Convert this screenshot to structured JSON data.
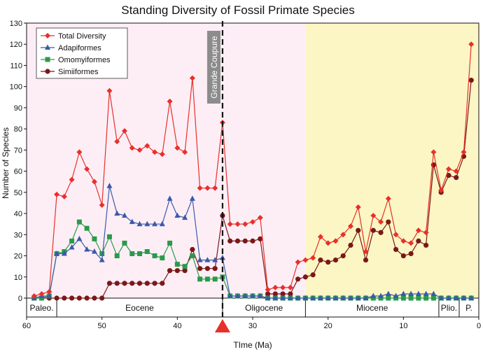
{
  "chart_data": {
    "type": "line",
    "title": "Standing Diversity of Fossil Primate Species",
    "xlabel": "TIme (Ma)",
    "ylabel": "Number of Species",
    "xlim": [
      60,
      0
    ],
    "ylim": [
      0,
      130
    ],
    "x_ticks": [
      60,
      50,
      40,
      30,
      20,
      10,
      0
    ],
    "y_ticks": [
      0,
      10,
      20,
      30,
      40,
      50,
      60,
      70,
      80,
      90,
      100,
      110,
      120,
      130
    ],
    "grid": false,
    "legend_position": "top-left",
    "background_regions": [
      {
        "from": 60,
        "to": 23,
        "color": "#fdeef6"
      },
      {
        "from": 23,
        "to": 0,
        "color": "#fbf6c4"
      }
    ],
    "epochs": [
      {
        "label": "Paleo.",
        "from": 60,
        "to": 56
      },
      {
        "label": "Eocene",
        "from": 56,
        "to": 34
      },
      {
        "label": "Oligocene",
        "from": 34,
        "to": 23
      },
      {
        "label": "Miocene",
        "from": 23,
        "to": 5.3
      },
      {
        "label": "Plio.",
        "from": 5.3,
        "to": 2.6
      },
      {
        "label": "P.",
        "from": 2.6,
        "to": 0
      }
    ],
    "annotation": {
      "text": "Grande Coupure",
      "x": 34
    },
    "series": [
      {
        "name": "Total Diversity",
        "color": "#e8302a",
        "marker": "diamond",
        "points": [
          [
            59,
            1
          ],
          [
            58,
            2
          ],
          [
            57,
            3
          ],
          [
            56,
            49
          ],
          [
            55,
            48
          ],
          [
            54,
            56
          ],
          [
            53,
            69
          ],
          [
            52,
            61
          ],
          [
            51,
            55
          ],
          [
            50,
            44
          ],
          [
            49,
            98
          ],
          [
            48,
            74
          ],
          [
            47,
            79
          ],
          [
            46,
            71
          ],
          [
            45,
            70
          ],
          [
            44,
            72
          ],
          [
            43,
            69
          ],
          [
            42,
            68
          ],
          [
            41,
            93
          ],
          [
            40,
            71
          ],
          [
            39,
            69
          ],
          [
            38,
            104
          ],
          [
            37,
            52
          ],
          [
            36,
            52
          ],
          [
            35,
            52
          ],
          [
            34,
            83
          ],
          [
            33,
            35
          ],
          [
            32,
            35
          ],
          [
            31,
            35
          ],
          [
            30,
            36
          ],
          [
            29,
            38
          ],
          [
            28,
            4
          ],
          [
            27,
            5
          ],
          [
            26,
            5
          ],
          [
            25,
            5
          ],
          [
            24,
            17
          ],
          [
            23,
            18
          ],
          [
            22,
            19
          ],
          [
            21,
            29
          ],
          [
            20,
            26
          ],
          [
            19,
            27
          ],
          [
            18,
            30
          ],
          [
            17,
            34
          ],
          [
            16,
            43
          ],
          [
            15,
            22
          ],
          [
            14,
            39
          ],
          [
            13,
            36
          ],
          [
            12,
            47
          ],
          [
            11,
            30
          ],
          [
            10,
            27
          ],
          [
            9,
            26
          ],
          [
            8,
            32
          ],
          [
            7,
            31
          ],
          [
            6,
            69
          ],
          [
            5,
            51
          ],
          [
            4,
            61
          ],
          [
            3,
            60
          ],
          [
            2,
            69
          ],
          [
            1,
            120
          ]
        ]
      },
      {
        "name": "Adapiformes",
        "color": "#3a5aa8",
        "marker": "triangle",
        "points": [
          [
            59,
            0
          ],
          [
            58,
            1
          ],
          [
            57,
            1
          ],
          [
            56,
            21
          ],
          [
            55,
            21
          ],
          [
            54,
            24
          ],
          [
            53,
            28
          ],
          [
            52,
            23
          ],
          [
            51,
            22
          ],
          [
            50,
            18
          ],
          [
            49,
            53
          ],
          [
            48,
            40
          ],
          [
            47,
            39
          ],
          [
            46,
            36
          ],
          [
            45,
            35
          ],
          [
            44,
            35
          ],
          [
            43,
            35
          ],
          [
            42,
            35
          ],
          [
            41,
            47
          ],
          [
            40,
            39
          ],
          [
            39,
            38
          ],
          [
            38,
            47
          ],
          [
            37,
            18
          ],
          [
            36,
            18
          ],
          [
            35,
            18
          ],
          [
            34,
            19
          ],
          [
            33,
            1
          ],
          [
            32,
            1
          ],
          [
            31,
            1
          ],
          [
            30,
            1
          ],
          [
            29,
            1
          ],
          [
            28,
            0
          ],
          [
            27,
            0
          ],
          [
            26,
            0
          ],
          [
            25,
            0
          ],
          [
            24,
            0
          ],
          [
            23,
            0
          ],
          [
            22,
            0
          ],
          [
            21,
            0
          ],
          [
            20,
            0
          ],
          [
            19,
            0
          ],
          [
            18,
            0
          ],
          [
            17,
            0
          ],
          [
            16,
            0
          ],
          [
            15,
            0
          ],
          [
            14,
            1
          ],
          [
            13,
            1
          ],
          [
            12,
            2
          ],
          [
            11,
            1
          ],
          [
            10,
            2
          ],
          [
            9,
            2
          ],
          [
            8,
            2
          ],
          [
            7,
            2
          ],
          [
            6,
            2
          ],
          [
            5,
            0
          ],
          [
            4,
            0
          ],
          [
            3,
            0
          ],
          [
            2,
            0
          ],
          [
            1,
            0
          ]
        ]
      },
      {
        "name": "Omomyiformes",
        "color": "#2a9a4a",
        "marker": "x",
        "points": [
          [
            59,
            0
          ],
          [
            58,
            0
          ],
          [
            57,
            1
          ],
          [
            56,
            21
          ],
          [
            55,
            22
          ],
          [
            54,
            27
          ],
          [
            53,
            36
          ],
          [
            52,
            33
          ],
          [
            51,
            28
          ],
          [
            50,
            21
          ],
          [
            49,
            29
          ],
          [
            48,
            20
          ],
          [
            47,
            26
          ],
          [
            46,
            21
          ],
          [
            45,
            21
          ],
          [
            44,
            22
          ],
          [
            43,
            20
          ],
          [
            42,
            19
          ],
          [
            41,
            26
          ],
          [
            40,
            16
          ],
          [
            39,
            15
          ],
          [
            38,
            20
          ],
          [
            37,
            9
          ],
          [
            36,
            9
          ],
          [
            35,
            9
          ],
          [
            34,
            10
          ],
          [
            33,
            1
          ],
          [
            32,
            1
          ],
          [
            31,
            1
          ],
          [
            30,
            1
          ],
          [
            29,
            1
          ],
          [
            28,
            0
          ],
          [
            27,
            0
          ],
          [
            26,
            0
          ],
          [
            25,
            0
          ],
          [
            24,
            0
          ],
          [
            23,
            0
          ],
          [
            22,
            0
          ],
          [
            21,
            0
          ],
          [
            20,
            0
          ],
          [
            19,
            0
          ],
          [
            18,
            0
          ],
          [
            17,
            0
          ],
          [
            16,
            0
          ],
          [
            15,
            0
          ],
          [
            14,
            0
          ],
          [
            13,
            0
          ],
          [
            12,
            0
          ],
          [
            11,
            0
          ],
          [
            10,
            0
          ],
          [
            9,
            0
          ],
          [
            8,
            0
          ],
          [
            7,
            0
          ],
          [
            6,
            0
          ],
          [
            5,
            0
          ],
          [
            4,
            0
          ],
          [
            3,
            0
          ],
          [
            2,
            0
          ],
          [
            1,
            0
          ]
        ]
      },
      {
        "name": "Simiiformes",
        "color": "#7a1818",
        "marker": "circle",
        "points": [
          [
            59,
            0
          ],
          [
            58,
            0
          ],
          [
            57,
            0
          ],
          [
            56,
            0
          ],
          [
            55,
            0
          ],
          [
            54,
            0
          ],
          [
            53,
            0
          ],
          [
            52,
            0
          ],
          [
            51,
            0
          ],
          [
            50,
            0
          ],
          [
            49,
            7
          ],
          [
            48,
            7
          ],
          [
            47,
            7
          ],
          [
            46,
            7
          ],
          [
            45,
            7
          ],
          [
            44,
            7
          ],
          [
            43,
            7
          ],
          [
            42,
            7
          ],
          [
            41,
            13
          ],
          [
            40,
            13
          ],
          [
            39,
            13
          ],
          [
            38,
            23
          ],
          [
            37,
            14
          ],
          [
            36,
            14
          ],
          [
            35,
            14
          ],
          [
            34,
            39
          ],
          [
            33,
            27
          ],
          [
            32,
            27
          ],
          [
            31,
            27
          ],
          [
            30,
            27
          ],
          [
            29,
            28
          ],
          [
            28,
            2
          ],
          [
            27,
            2
          ],
          [
            26,
            2
          ],
          [
            25,
            2
          ],
          [
            24,
            9
          ],
          [
            23,
            10
          ],
          [
            22,
            11
          ],
          [
            21,
            18
          ],
          [
            20,
            17
          ],
          [
            19,
            18
          ],
          [
            18,
            20
          ],
          [
            17,
            25
          ],
          [
            16,
            32
          ],
          [
            15,
            18
          ],
          [
            14,
            32
          ],
          [
            13,
            31
          ],
          [
            12,
            36
          ],
          [
            11,
            23
          ],
          [
            10,
            20
          ],
          [
            9,
            21
          ],
          [
            8,
            27
          ],
          [
            7,
            25
          ],
          [
            6,
            63
          ],
          [
            5,
            50
          ],
          [
            4,
            58
          ],
          [
            3,
            57
          ],
          [
            2,
            67
          ],
          [
            1,
            103
          ]
        ]
      }
    ]
  }
}
